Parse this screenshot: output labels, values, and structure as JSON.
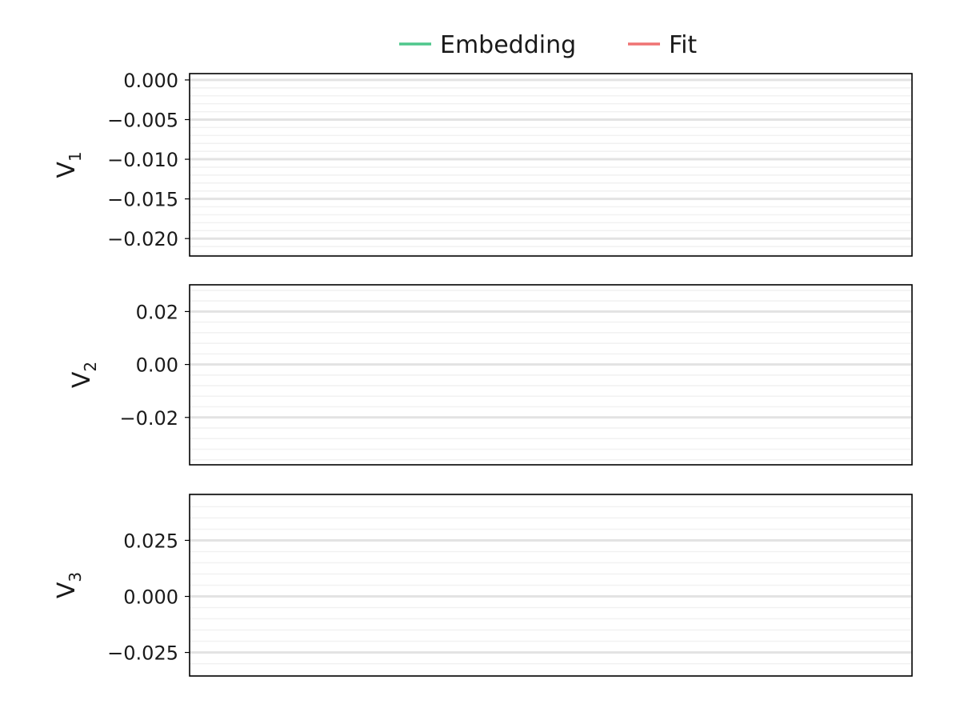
{
  "legend": {
    "items": [
      {
        "label": "Embedding",
        "color": "#4fc78c"
      },
      {
        "label": "Fit",
        "color": "#ef7373"
      }
    ]
  },
  "chart_data": [
    {
      "type": "line",
      "ylabel": "V",
      "ylabel_subscript": "1",
      "ylim": [
        -0.0222,
        0.0008
      ],
      "yticks": [
        0.0,
        -0.005,
        -0.01,
        -0.015,
        -0.02
      ],
      "ytick_labels": [
        "0.000",
        "−0.005",
        "−0.010",
        "−0.015",
        "−0.020"
      ],
      "minor_step": 0.001,
      "grid": true,
      "series": [
        {
          "name": "Embedding",
          "values": []
        },
        {
          "name": "Fit",
          "values": []
        }
      ]
    },
    {
      "type": "line",
      "ylabel": "V",
      "ylabel_subscript": "2",
      "ylim": [
        -0.0379,
        0.0301
      ],
      "yticks": [
        0.02,
        0.0,
        -0.02
      ],
      "ytick_labels": [
        "0.02",
        "0.00",
        "−0.02"
      ],
      "minor_step": 0.004,
      "grid": true,
      "series": [
        {
          "name": "Embedding",
          "values": []
        },
        {
          "name": "Fit",
          "values": []
        }
      ]
    },
    {
      "type": "line",
      "ylabel": "V",
      "ylabel_subscript": "3",
      "ylim": [
        -0.0355,
        0.0455
      ],
      "yticks": [
        0.025,
        0.0,
        -0.025
      ],
      "ytick_labels": [
        "0.025",
        "0.000",
        "−0.025"
      ],
      "minor_step": 0.005,
      "grid": true,
      "series": [
        {
          "name": "Embedding",
          "values": []
        },
        {
          "name": "Fit",
          "values": []
        }
      ]
    }
  ]
}
